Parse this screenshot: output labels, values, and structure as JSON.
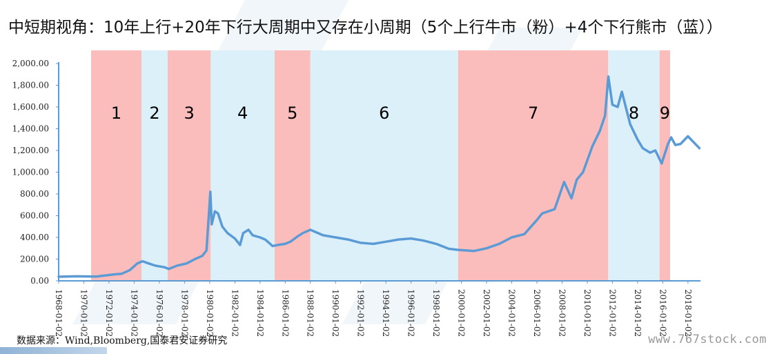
{
  "title": "中短期视角：10年上行+20年下行大周期中又存在小周期（5个上行牛市（粉）+4个下行熊市（蓝））",
  "source": "数据来源：Wind,Bloomberg,国泰君安证券研究",
  "watermark": "www.767stock.com",
  "colors": {
    "bull": "#fbbcbc",
    "bear": "#dcf0fa",
    "line": "#5b9bd5",
    "axis": "#5b9bd5"
  },
  "chart_data": {
    "type": "line",
    "x_type": "date",
    "ylim": [
      0,
      2000
    ],
    "y_ticks": [
      0,
      200,
      400,
      600,
      800,
      1000,
      1200,
      1400,
      1600,
      1800,
      2000
    ],
    "y_tick_labels": [
      "0.00",
      "200.00",
      "400.00",
      "600.00",
      "800.00",
      "1,000.00",
      "1,200.00",
      "1,400.00",
      "1,600.00",
      "1,800.00",
      "2,000.00"
    ],
    "x_tick_labels": [
      "1968-01-02",
      "1970-01-02",
      "1972-01-02",
      "1974-01-02",
      "1976-01-02",
      "1978-01-02",
      "1980-01-02",
      "1982-01-02",
      "1984-01-02",
      "1986-01-02",
      "1988-01-02",
      "1990-01-02",
      "1992-01-02",
      "1994-01-02",
      "1996-01-02",
      "1998-01-02",
      "2000-01-02",
      "2002-01-02",
      "2004-01-02",
      "2006-01-02",
      "2008-01-02",
      "2010-01-02",
      "2012-01-02",
      "2014-01-02",
      "2016-01-02",
      "2018-01-02"
    ],
    "x_range": [
      "1968-01-02",
      "2018-12-31"
    ],
    "bands": [
      {
        "label": "1",
        "type": "bull",
        "start": "1970-08-01",
        "end": "1974-08-01"
      },
      {
        "label": "2",
        "type": "bear",
        "start": "1974-08-01",
        "end": "1976-09-01"
      },
      {
        "label": "3",
        "type": "bull",
        "start": "1976-09-01",
        "end": "1980-02-01"
      },
      {
        "label": "4",
        "type": "bear",
        "start": "1980-02-01",
        "end": "1985-03-01"
      },
      {
        "label": "5",
        "type": "bull",
        "start": "1985-03-01",
        "end": "1988-01-01"
      },
      {
        "label": "6",
        "type": "bear",
        "start": "1988-01-01",
        "end": "1999-10-01"
      },
      {
        "label": "7",
        "type": "bull",
        "start": "1999-10-01",
        "end": "2011-09-01"
      },
      {
        "label": "8",
        "type": "bear",
        "start": "2011-09-01",
        "end": "2015-10-01"
      },
      {
        "label": "9",
        "type": "bull",
        "start": "2015-10-01",
        "end": "2016-08-01"
      }
    ],
    "series": [
      {
        "x": [
          "1968-01-02",
          "1969-06-01",
          "1971-01-01",
          "1972-06-01",
          "1973-01-01",
          "1973-09-01",
          "1974-04-01",
          "1974-09-01",
          "1975-03-01",
          "1975-09-01",
          "1976-06-01",
          "1976-10-01",
          "1977-06-01",
          "1978-03-01",
          "1978-11-01",
          "1979-06-01",
          "1979-10-01",
          "1980-01-21",
          "1980-03-01",
          "1980-06-01",
          "1980-09-01",
          "1981-01-01",
          "1981-06-01",
          "1982-01-01",
          "1982-06-01",
          "1982-09-01",
          "1983-02-01",
          "1983-06-01",
          "1984-01-01",
          "1984-06-01",
          "1985-01-01",
          "1985-06-01",
          "1986-01-01",
          "1986-06-01",
          "1987-01-01",
          "1987-06-01",
          "1988-01-01",
          "1989-01-01",
          "1990-01-01",
          "1991-01-01",
          "1992-01-01",
          "1993-01-01",
          "1994-01-01",
          "1995-01-01",
          "1996-01-01",
          "1997-01-01",
          "1998-01-01",
          "1999-01-01",
          "1999-10-01",
          "2001-01-01",
          "2002-01-01",
          "2003-01-01",
          "2004-01-01",
          "2005-01-01",
          "2006-01-01",
          "2006-06-01",
          "2007-06-01",
          "2008-03-01",
          "2008-10-01",
          "2009-03-01",
          "2009-09-01",
          "2010-06-01",
          "2011-01-01",
          "2011-06-01",
          "2011-09-06",
          "2012-01-01",
          "2012-06-01",
          "2012-10-01",
          "2013-06-01",
          "2014-01-01",
          "2014-06-01",
          "2015-01-01",
          "2015-06-01",
          "2015-12-01",
          "2016-06-01",
          "2016-09-01",
          "2017-01-01",
          "2017-06-01",
          "2018-01-01",
          "2018-06-01",
          "2018-12-01"
        ],
        "y": [
          38,
          42,
          40,
          60,
          65,
          100,
          160,
          180,
          160,
          140,
          125,
          110,
          140,
          160,
          200,
          230,
          280,
          820,
          520,
          640,
          620,
          500,
          440,
          390,
          330,
          440,
          470,
          420,
          400,
          380,
          320,
          330,
          340,
          360,
          410,
          440,
          470,
          420,
          400,
          380,
          350,
          340,
          360,
          380,
          390,
          370,
          340,
          295,
          285,
          275,
          300,
          340,
          400,
          430,
          560,
          620,
          660,
          910,
          760,
          930,
          1000,
          1240,
          1380,
          1520,
          1880,
          1620,
          1600,
          1740,
          1440,
          1300,
          1220,
          1180,
          1200,
          1080,
          1260,
          1320,
          1250,
          1260,
          1330,
          1280,
          1220
        ]
      }
    ]
  }
}
